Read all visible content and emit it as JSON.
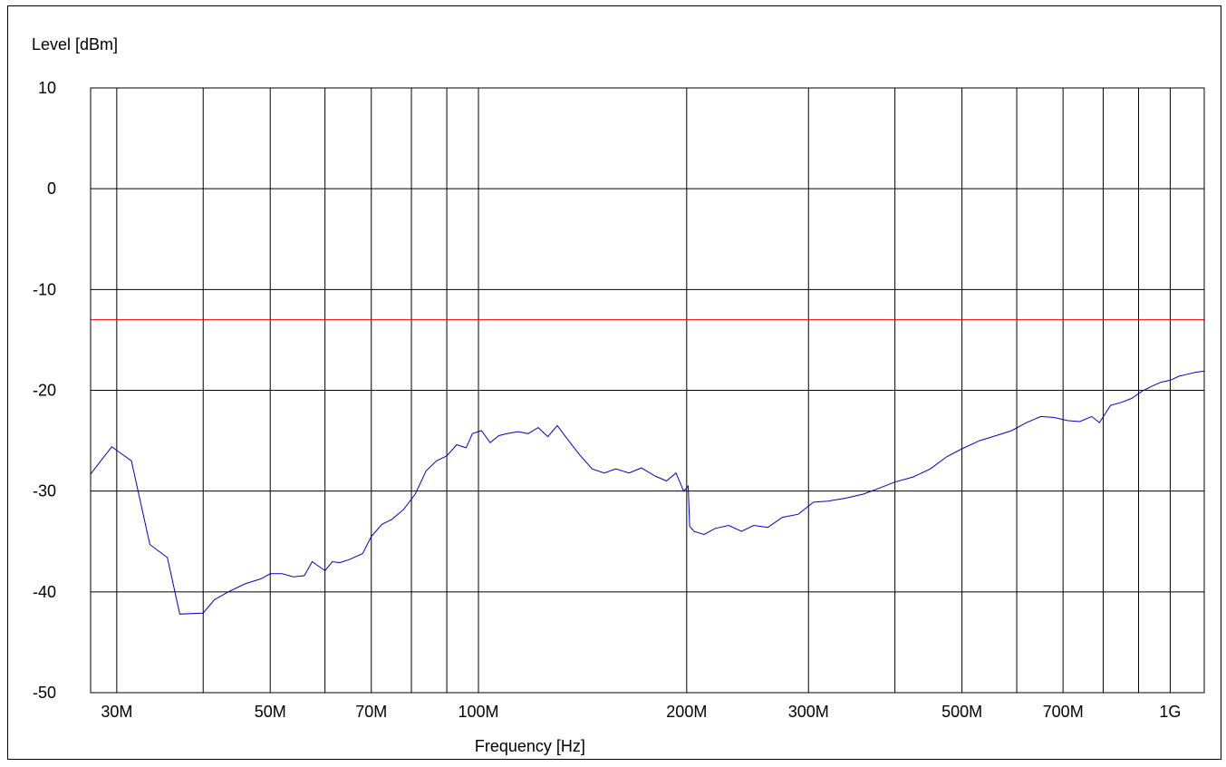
{
  "chart_data": {
    "type": "line",
    "title": "",
    "xlabel": "Frequency [Hz]",
    "ylabel": "Level [dBm]",
    "x_scale": "log",
    "xlim": [
      27500000,
      1120000000
    ],
    "ylim": [
      -50,
      10
    ],
    "grid": true,
    "x_ticks": [
      {
        "value": 30000000,
        "label": "30M"
      },
      {
        "value": 40000000,
        "label": ""
      },
      {
        "value": 50000000,
        "label": "50M"
      },
      {
        "value": 60000000,
        "label": ""
      },
      {
        "value": 70000000,
        "label": "70M"
      },
      {
        "value": 80000000,
        "label": ""
      },
      {
        "value": 90000000,
        "label": ""
      },
      {
        "value": 100000000,
        "label": "100M"
      },
      {
        "value": 200000000,
        "label": "200M"
      },
      {
        "value": 300000000,
        "label": "300M"
      },
      {
        "value": 400000000,
        "label": ""
      },
      {
        "value": 500000000,
        "label": "500M"
      },
      {
        "value": 600000000,
        "label": ""
      },
      {
        "value": 700000000,
        "label": "700M"
      },
      {
        "value": 800000000,
        "label": ""
      },
      {
        "value": 900000000,
        "label": ""
      },
      {
        "value": 1000000000,
        "label": "1G"
      }
    ],
    "y_ticks": [
      {
        "value": 10,
        "label": "10"
      },
      {
        "value": 0,
        "label": "0"
      },
      {
        "value": -10,
        "label": "-10"
      },
      {
        "value": -20,
        "label": "-20"
      },
      {
        "value": -30,
        "label": "-30"
      },
      {
        "value": -40,
        "label": "-40"
      },
      {
        "value": -50,
        "label": "-50"
      }
    ],
    "limit_line": {
      "value": -13,
      "color": "#ff0000"
    },
    "series": [
      {
        "color": "#0000cc",
        "x": [
          27500000,
          29500000,
          31500000,
          33500000,
          35500000,
          37000000,
          40000000,
          41500000,
          43500000,
          46000000,
          48500000,
          50000000,
          52000000,
          54000000,
          56000000,
          57500000,
          60000000,
          61500000,
          63000000,
          65000000,
          68000000,
          70000000,
          72500000,
          75000000,
          78000000,
          81000000,
          84000000,
          87000000,
          90000000,
          93000000,
          96000000,
          98000000,
          101000000,
          104000000,
          107000000,
          110000000,
          114000000,
          118000000,
          122000000,
          126000000,
          130000000,
          135000000,
          140000000,
          146000000,
          152000000,
          158000000,
          165000000,
          172000000,
          180000000,
          187000000,
          193000000,
          198000000,
          201000000,
          202000000,
          205000000,
          212000000,
          220000000,
          230000000,
          240000000,
          250000000,
          262000000,
          275000000,
          290000000,
          305000000,
          320000000,
          340000000,
          360000000,
          380000000,
          400000000,
          425000000,
          450000000,
          475000000,
          500000000,
          530000000,
          560000000,
          590000000,
          620000000,
          650000000,
          680000000,
          710000000,
          740000000,
          770000000,
          790000000,
          820000000,
          850000000,
          880000000,
          910000000,
          940000000,
          970000000,
          1000000000,
          1030000000,
          1060000000,
          1090000000,
          1120000000
        ],
        "y": [
          -28.3,
          -25.6,
          -27,
          -35.3,
          -36.6,
          -42.2,
          -42.1,
          -40.8,
          -40,
          -39.2,
          -38.7,
          -38.2,
          -38.2,
          -38.5,
          -38.4,
          -37,
          -37.9,
          -37,
          -37.1,
          -36.8,
          -36.2,
          -34.5,
          -33.3,
          -32.8,
          -31.8,
          -30.3,
          -28,
          -27,
          -26.5,
          -25.4,
          -25.7,
          -24.3,
          -24,
          -25.2,
          -24.5,
          -24.3,
          -24.1,
          -24.3,
          -23.7,
          -24.6,
          -23.5,
          -25,
          -26.4,
          -27.8,
          -28.2,
          -27.8,
          -28.2,
          -27.7,
          -28.5,
          -29,
          -28.2,
          -30,
          -29.5,
          -33.5,
          -34,
          -34.3,
          -33.7,
          -33.4,
          -34,
          -33.4,
          -33.6,
          -32.6,
          -32.3,
          -31.1,
          -31,
          -30.7,
          -30.3,
          -29.7,
          -29.1,
          -28.6,
          -27.8,
          -26.6,
          -25.8,
          -25,
          -24.5,
          -24,
          -23.2,
          -22.6,
          -22.7,
          -23,
          -23.1,
          -22.6,
          -23.2,
          -21.5,
          -21.2,
          -20.8,
          -20.1,
          -19.6,
          -19.2,
          -19,
          -18.6,
          -18.4,
          -18.2,
          -18.1
        ]
      }
    ]
  }
}
